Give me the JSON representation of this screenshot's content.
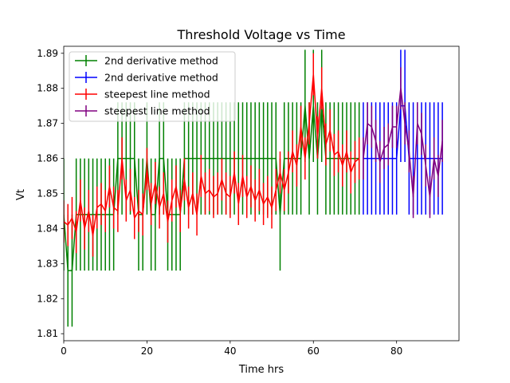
{
  "chart_data": {
    "type": "line",
    "title": "Threshold Voltage vs Time",
    "xlabel": "Time hrs",
    "ylabel": "Vt",
    "xlim": [
      0,
      95
    ],
    "ylim": [
      1.808,
      1.892
    ],
    "xticks": [
      0,
      20,
      40,
      60,
      80
    ],
    "yticks": [
      1.81,
      1.82,
      1.83,
      1.84,
      1.85,
      1.86,
      1.87,
      1.88,
      1.89
    ],
    "legend_position": "top-left",
    "grid": false,
    "series": [
      {
        "name": "2nd derivative method",
        "color": "#008000",
        "x": [
          0,
          1,
          2,
          3,
          4,
          5,
          6,
          7,
          8,
          9,
          10,
          11,
          12,
          13,
          14,
          15,
          16,
          17,
          18,
          19,
          20,
          21,
          22,
          23,
          24,
          25,
          26,
          27,
          28,
          29,
          30,
          31,
          32,
          33,
          34,
          35,
          36,
          37,
          38,
          39,
          40,
          41,
          42,
          43,
          44,
          45,
          46,
          47,
          48,
          49,
          50,
          51,
          52,
          53,
          54,
          55,
          56,
          57,
          58,
          59,
          60,
          61,
          62,
          63,
          64,
          65,
          66,
          67,
          68,
          69,
          70,
          71
        ],
        "y": [
          1.844,
          1.828,
          1.828,
          1.844,
          1.844,
          1.844,
          1.844,
          1.844,
          1.844,
          1.844,
          1.844,
          1.844,
          1.844,
          1.86,
          1.86,
          1.86,
          1.86,
          1.86,
          1.844,
          1.844,
          1.86,
          1.844,
          1.844,
          1.86,
          1.86,
          1.844,
          1.844,
          1.844,
          1.844,
          1.86,
          1.86,
          1.86,
          1.86,
          1.86,
          1.86,
          1.86,
          1.86,
          1.86,
          1.86,
          1.86,
          1.86,
          1.86,
          1.86,
          1.86,
          1.86,
          1.86,
          1.86,
          1.86,
          1.86,
          1.86,
          1.86,
          1.86,
          1.844,
          1.86,
          1.86,
          1.86,
          1.86,
          1.86,
          1.875,
          1.86,
          1.875,
          1.86,
          1.875,
          1.86,
          1.86,
          1.86,
          1.86,
          1.86,
          1.86,
          1.86,
          1.86,
          1.86
        ],
        "err": [
          0.016,
          0.016,
          0.016,
          0.016,
          0.016,
          0.016,
          0.016,
          0.016,
          0.016,
          0.016,
          0.016,
          0.016,
          0.016,
          0.016,
          0.016,
          0.016,
          0.016,
          0.016,
          0.016,
          0.016,
          0.016,
          0.016,
          0.016,
          0.016,
          0.016,
          0.016,
          0.016,
          0.016,
          0.016,
          0.016,
          0.016,
          0.016,
          0.016,
          0.016,
          0.016,
          0.016,
          0.016,
          0.016,
          0.016,
          0.016,
          0.016,
          0.016,
          0.016,
          0.016,
          0.016,
          0.016,
          0.016,
          0.016,
          0.016,
          0.016,
          0.016,
          0.016,
          0.016,
          0.016,
          0.016,
          0.016,
          0.016,
          0.016,
          0.016,
          0.016,
          0.016,
          0.016,
          0.016,
          0.016,
          0.016,
          0.016,
          0.016,
          0.016,
          0.016,
          0.016,
          0.016,
          0.016
        ]
      },
      {
        "name": "2nd derivative method",
        "color": "#0000ff",
        "x": [
          72,
          73,
          74,
          75,
          76,
          77,
          78,
          79,
          80,
          81,
          82,
          83,
          84,
          85,
          86,
          87,
          88,
          89,
          90,
          91
        ],
        "y": [
          1.86,
          1.86,
          1.86,
          1.86,
          1.86,
          1.86,
          1.86,
          1.86,
          1.86,
          1.875,
          1.875,
          1.86,
          1.86,
          1.86,
          1.86,
          1.86,
          1.86,
          1.86,
          1.86,
          1.86
        ],
        "err": [
          0.016,
          0.016,
          0.016,
          0.016,
          0.016,
          0.016,
          0.016,
          0.016,
          0.016,
          0.016,
          0.016,
          0.016,
          0.016,
          0.016,
          0.016,
          0.016,
          0.016,
          0.016,
          0.016,
          0.016
        ]
      },
      {
        "name": "steepest line method",
        "color": "#ff0000",
        "x": [
          0,
          1,
          2,
          3,
          4,
          5,
          6,
          7,
          8,
          9,
          10,
          11,
          12,
          13,
          14,
          15,
          16,
          17,
          18,
          19,
          20,
          21,
          22,
          23,
          24,
          25,
          26,
          27,
          28,
          29,
          30,
          31,
          32,
          33,
          34,
          35,
          36,
          37,
          38,
          39,
          40,
          41,
          42,
          43,
          44,
          45,
          46,
          47,
          48,
          49,
          50,
          51,
          52,
          53,
          54,
          55,
          56,
          57,
          58,
          59,
          60,
          61,
          62,
          63,
          64,
          65,
          66,
          67,
          68,
          69,
          70,
          71
        ],
        "y": [
          1.842,
          1.841,
          1.843,
          1.839,
          1.848,
          1.84,
          1.845,
          1.838,
          1.846,
          1.847,
          1.845,
          1.852,
          1.846,
          1.845,
          1.86,
          1.848,
          1.851,
          1.843,
          1.845,
          1.844,
          1.857,
          1.847,
          1.853,
          1.846,
          1.85,
          1.842,
          1.848,
          1.852,
          1.845,
          1.854,
          1.846,
          1.85,
          1.844,
          1.855,
          1.85,
          1.851,
          1.849,
          1.85,
          1.854,
          1.85,
          1.849,
          1.856,
          1.847,
          1.855,
          1.849,
          1.852,
          1.848,
          1.851,
          1.847,
          1.849,
          1.846,
          1.851,
          1.856,
          1.851,
          1.856,
          1.862,
          1.858,
          1.869,
          1.86,
          1.87,
          1.884,
          1.866,
          1.88,
          1.864,
          1.868,
          1.861,
          1.862,
          1.858,
          1.862,
          1.856,
          1.859,
          1.86
        ],
        "err": [
          0.006,
          0.006,
          0.006,
          0.006,
          0.006,
          0.006,
          0.006,
          0.006,
          0.006,
          0.006,
          0.006,
          0.006,
          0.006,
          0.006,
          0.006,
          0.006,
          0.006,
          0.006,
          0.006,
          0.006,
          0.006,
          0.006,
          0.006,
          0.006,
          0.006,
          0.006,
          0.006,
          0.006,
          0.006,
          0.006,
          0.006,
          0.006,
          0.006,
          0.006,
          0.006,
          0.006,
          0.006,
          0.006,
          0.006,
          0.006,
          0.006,
          0.006,
          0.006,
          0.006,
          0.006,
          0.006,
          0.006,
          0.006,
          0.006,
          0.006,
          0.006,
          0.006,
          0.006,
          0.006,
          0.006,
          0.006,
          0.006,
          0.006,
          0.006,
          0.006,
          0.006,
          0.006,
          0.006,
          0.006,
          0.006,
          0.006,
          0.006,
          0.006,
          0.006,
          0.006,
          0.006,
          0.006
        ]
      },
      {
        "name": "steepest line method",
        "color": "#800080",
        "x": [
          72,
          73,
          74,
          75,
          76,
          77,
          78,
          79,
          80,
          81,
          82,
          83,
          84,
          85,
          86,
          87,
          88,
          89,
          90,
          91
        ],
        "y": [
          1.86,
          1.87,
          1.869,
          1.865,
          1.859,
          1.863,
          1.864,
          1.869,
          1.869,
          1.88,
          1.87,
          1.862,
          1.849,
          1.87,
          1.867,
          1.858,
          1.849,
          1.86,
          1.855,
          1.865
        ],
        "err": [
          0.006,
          0.006,
          0.006,
          0.006,
          0.006,
          0.006,
          0.006,
          0.006,
          0.006,
          0.006,
          0.006,
          0.006,
          0.006,
          0.006,
          0.006,
          0.006,
          0.006,
          0.006,
          0.006,
          0.006
        ]
      }
    ]
  }
}
